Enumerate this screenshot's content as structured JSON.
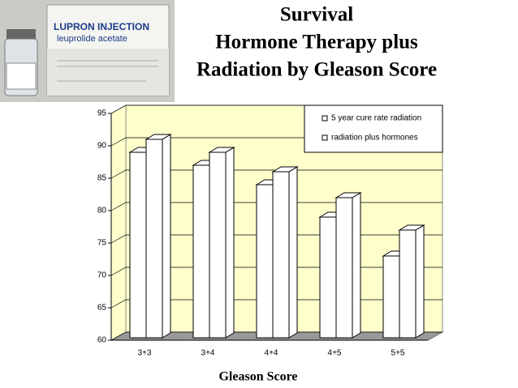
{
  "chart_data": {
    "type": "bar3d",
    "title": [
      "Survival",
      "Hormone Therapy plus",
      "Radiation by Gleason Score"
    ],
    "annotations": [
      "LUPRON INJECTION",
      "leuprolide acetate"
    ],
    "categories": [
      "3+3",
      "3+4",
      "4+4",
      "4+5",
      "5+5"
    ],
    "series": [
      {
        "name": "5 year cure rate radiation",
        "color": "#ffffff",
        "values": [
          89,
          87,
          84,
          79,
          73
        ]
      },
      {
        "name": "radiation plus hormones",
        "color": "#ffffff",
        "values": [
          91,
          89,
          86,
          82,
          77
        ]
      }
    ],
    "ylim": [
      60,
      95
    ],
    "yticks": [
      60,
      65,
      70,
      75,
      80,
      85,
      90,
      95
    ],
    "xlabel": "Gleason Score",
    "grid": true,
    "legend": "top-right",
    "wall_color": "#ffffcc"
  }
}
